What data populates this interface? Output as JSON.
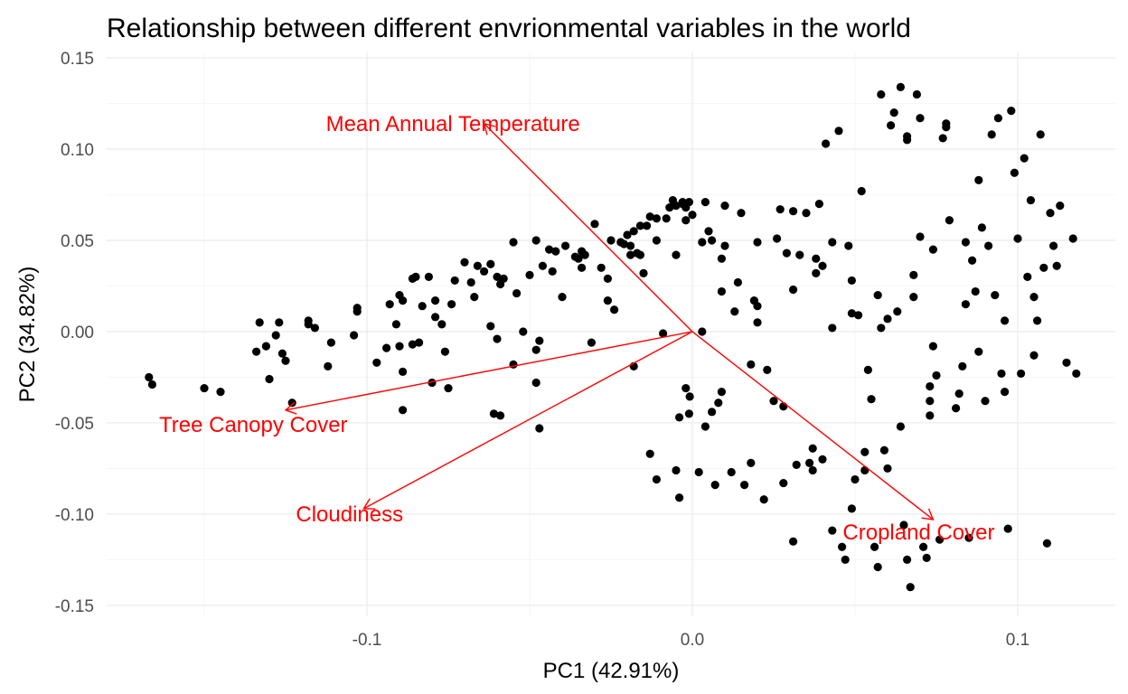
{
  "chart_data": {
    "type": "scatter",
    "title": "Relationship between different envrionmental variables in the world",
    "xlabel": "PC1 (42.91%)",
    "ylabel": "PC2 (34.82%)",
    "xlim": [
      -0.18,
      0.13
    ],
    "ylim": [
      -0.156,
      0.153
    ],
    "x_ticks": [
      -0.1,
      0.0,
      0.1
    ],
    "x_tick_labels": [
      "-0.1",
      "0.0",
      "0.1"
    ],
    "y_ticks": [
      -0.15,
      -0.1,
      -0.05,
      0.0,
      0.05,
      0.1,
      0.15
    ],
    "y_tick_labels": [
      "-0.15",
      "-0.10",
      "-0.05",
      "0.00",
      "0.05",
      "0.10",
      "0.15"
    ],
    "grid": true,
    "point_color": "#000000",
    "arrow_color": "#ff0000",
    "arrows": [
      {
        "label": "Mean Annual Temperature",
        "x": -0.064,
        "y": 0.114
      },
      {
        "label": "Tree Canopy Cover",
        "x": -0.125,
        "y": -0.043
      },
      {
        "label": "Cloudiness",
        "x": -0.101,
        "y": -0.097
      },
      {
        "label": "Cropland Cover",
        "x": 0.074,
        "y": -0.103
      }
    ],
    "points": [
      [
        -0.167,
        -0.025
      ],
      [
        -0.166,
        -0.029
      ],
      [
        -0.15,
        -0.031
      ],
      [
        -0.145,
        -0.033
      ],
      [
        -0.134,
        -0.011
      ],
      [
        -0.133,
        0.005
      ],
      [
        -0.131,
        -0.008
      ],
      [
        -0.13,
        -0.026
      ],
      [
        -0.128,
        -0.002
      ],
      [
        -0.127,
        0.005
      ],
      [
        -0.126,
        -0.012
      ],
      [
        -0.125,
        -0.016
      ],
      [
        -0.123,
        -0.039
      ],
      [
        -0.118,
        0.006
      ],
      [
        -0.118,
        0.004
      ],
      [
        -0.116,
        0.002
      ],
      [
        -0.112,
        -0.019
      ],
      [
        -0.111,
        -0.006
      ],
      [
        -0.104,
        -0.002
      ],
      [
        -0.103,
        0.011
      ],
      [
        -0.103,
        0.013
      ],
      [
        -0.097,
        -0.017
      ],
      [
        -0.094,
        -0.009
      ],
      [
        -0.093,
        0.015
      ],
      [
        -0.091,
        0.004
      ],
      [
        -0.09,
        -0.008
      ],
      [
        -0.09,
        0.02
      ],
      [
        -0.089,
        0.017
      ],
      [
        -0.089,
        -0.022
      ],
      [
        -0.089,
        -0.043
      ],
      [
        -0.086,
        -0.007
      ],
      [
        -0.086,
        0.029
      ],
      [
        -0.085,
        0.03
      ],
      [
        -0.084,
        -0.006
      ],
      [
        -0.083,
        0.014
      ],
      [
        -0.081,
        0.03
      ],
      [
        -0.08,
        -0.028
      ],
      [
        -0.079,
        0.017
      ],
      [
        -0.079,
        0.008
      ],
      [
        -0.077,
        0.004
      ],
      [
        -0.076,
        -0.011
      ],
      [
        -0.075,
        -0.031
      ],
      [
        -0.074,
        0.015
      ],
      [
        -0.073,
        0.028
      ],
      [
        -0.07,
        0.038
      ],
      [
        -0.068,
        0.027
      ],
      [
        -0.067,
        0.019
      ],
      [
        -0.066,
        0.036
      ],
      [
        -0.064,
        0.033
      ],
      [
        -0.062,
        0.037
      ],
      [
        -0.062,
        0.003
      ],
      [
        -0.061,
        -0.045
      ],
      [
        -0.06,
        -0.004
      ],
      [
        -0.06,
        0.03
      ],
      [
        -0.059,
        0.026
      ],
      [
        -0.059,
        -0.046
      ],
      [
        -0.058,
        0.029
      ],
      [
        -0.055,
        -0.018
      ],
      [
        -0.055,
        0.049
      ],
      [
        -0.054,
        0.021
      ],
      [
        -0.052,
        0.0
      ],
      [
        -0.05,
        0.031
      ],
      [
        -0.048,
        0.05
      ],
      [
        -0.048,
        -0.028
      ],
      [
        -0.048,
        -0.01
      ],
      [
        -0.047,
        -0.053
      ],
      [
        -0.047,
        -0.005
      ],
      [
        -0.046,
        0.036
      ],
      [
        -0.044,
        0.045
      ],
      [
        -0.043,
        0.033
      ],
      [
        -0.042,
        0.044
      ],
      [
        -0.04,
        0.019
      ],
      [
        -0.039,
        0.047
      ],
      [
        -0.036,
        0.041
      ],
      [
        -0.035,
        0.04
      ],
      [
        -0.034,
        0.044
      ],
      [
        -0.034,
        0.035
      ],
      [
        -0.033,
        0.042
      ],
      [
        -0.031,
        -0.006
      ],
      [
        -0.03,
        0.059
      ],
      [
        -0.028,
        0.035
      ],
      [
        -0.026,
        0.017
      ],
      [
        -0.026,
        0.029
      ],
      [
        -0.025,
        0.05
      ],
      [
        -0.024,
        0.012
      ],
      [
        -0.022,
        0.049
      ],
      [
        -0.021,
        0.048
      ],
      [
        -0.02,
        0.053
      ],
      [
        -0.019,
        0.042
      ],
      [
        -0.019,
        0.047
      ],
      [
        -0.018,
        0.055
      ],
      [
        -0.018,
        -0.019
      ],
      [
        -0.017,
        0.043
      ],
      [
        -0.016,
        0.042
      ],
      [
        -0.016,
        0.058
      ],
      [
        -0.015,
        0.032
      ],
      [
        -0.014,
        0.058
      ],
      [
        -0.013,
        0.063
      ],
      [
        -0.013,
        -0.067
      ],
      [
        -0.011,
        0.062
      ],
      [
        -0.011,
        0.05
      ],
      [
        -0.011,
        -0.081
      ],
      [
        -0.009,
        -0.001
      ],
      [
        -0.008,
        0.062
      ],
      [
        -0.007,
        0.068
      ],
      [
        -0.006,
        0.072
      ],
      [
        -0.005,
        0.069
      ],
      [
        -0.005,
        0.042
      ],
      [
        -0.005,
        -0.076
      ],
      [
        -0.004,
        -0.047
      ],
      [
        -0.004,
        -0.091
      ],
      [
        -0.003,
        0.07
      ],
      [
        -0.003,
        0.071
      ],
      [
        -0.003,
        0.07
      ],
      [
        -0.002,
        0.061
      ],
      [
        -0.002,
        0.068
      ],
      [
        -0.0008,
        -0.0356
      ],
      [
        0.0,
        0.064
      ],
      [
        -0.001,
        0.071
      ],
      [
        -0.002,
        -0.031
      ],
      [
        -0.001,
        -0.045
      ],
      [
        0.002,
        -0.077
      ],
      [
        0.003,
        0.049
      ],
      [
        0.003,
        0.0
      ],
      [
        0.004,
        -0.052
      ],
      [
        0.004,
        0.071
      ],
      [
        0.005,
        0.055
      ],
      [
        0.006,
        0.05
      ],
      [
        0.006,
        -0.044
      ],
      [
        0.007,
        -0.084
      ],
      [
        0.008,
        -0.039
      ],
      [
        0.009,
        0.022
      ],
      [
        0.009,
        0.04
      ],
      [
        0.009,
        -0.033
      ],
      [
        0.01,
        0.069
      ],
      [
        0.01,
        0.047
      ],
      [
        0.012,
        -0.077
      ],
      [
        0.013,
        0.011
      ],
      [
        0.014,
        0.027
      ],
      [
        0.015,
        0.065
      ],
      [
        0.016,
        -0.084
      ],
      [
        0.018,
        -0.072
      ],
      [
        0.018,
        -0.018
      ],
      [
        0.019,
        0.017
      ],
      [
        0.02,
        0.014
      ],
      [
        0.02,
        0.005
      ],
      [
        0.02,
        0.049
      ],
      [
        0.022,
        -0.092
      ],
      [
        0.023,
        -0.021
      ],
      [
        0.025,
        -0.038
      ],
      [
        0.026,
        0.051
      ],
      [
        0.027,
        0.067
      ],
      [
        0.028,
        -0.083
      ],
      [
        0.028,
        -0.041
      ],
      [
        0.029,
        0.043
      ],
      [
        0.031,
        0.066
      ],
      [
        0.031,
        0.023
      ],
      [
        0.031,
        -0.115
      ],
      [
        0.032,
        -0.073
      ],
      [
        0.033,
        0.042
      ],
      [
        0.035,
        0.065
      ],
      [
        0.036,
        -0.072
      ],
      [
        0.037,
        -0.064
      ],
      [
        0.037,
        -0.076
      ],
      [
        0.038,
        0.032
      ],
      [
        0.038,
        0.04
      ],
      [
        0.039,
        0.07
      ],
      [
        0.04,
        -0.07
      ],
      [
        0.04,
        0.036
      ],
      [
        0.041,
        0.103
      ],
      [
        0.043,
        0.002
      ],
      [
        0.043,
        -0.109
      ],
      [
        0.043,
        0.049
      ],
      [
        0.045,
        0.11
      ],
      [
        0.046,
        -0.118
      ],
      [
        0.047,
        -0.125
      ],
      [
        0.048,
        0.047
      ],
      [
        0.049,
        0.028
      ],
      [
        0.049,
        0.01
      ],
      [
        0.049,
        -0.097
      ],
      [
        0.05,
        -0.081
      ],
      [
        0.051,
        0.009
      ],
      [
        0.052,
        0.077
      ],
      [
        0.053,
        -0.066
      ],
      [
        0.053,
        -0.076
      ],
      [
        0.054,
        -0.021
      ],
      [
        0.055,
        -0.037
      ],
      [
        0.056,
        -0.118
      ],
      [
        0.057,
        0.02
      ],
      [
        0.057,
        -0.129
      ],
      [
        0.058,
        0.002
      ],
      [
        0.058,
        0.13
      ],
      [
        0.059,
        -0.065
      ],
      [
        0.06,
        0.007
      ],
      [
        0.06,
        -0.075
      ],
      [
        0.061,
        0.113
      ],
      [
        0.062,
        0.12
      ],
      [
        0.063,
        0.011
      ],
      [
        0.064,
        -0.052
      ],
      [
        0.064,
        0.134
      ],
      [
        0.065,
        -0.106
      ],
      [
        0.066,
        0.107
      ],
      [
        0.066,
        -0.125
      ],
      [
        0.066,
        0.105
      ],
      [
        0.067,
        -0.14
      ],
      [
        0.068,
        0.031
      ],
      [
        0.068,
        0.019
      ],
      [
        0.069,
        0.13
      ],
      [
        0.07,
        0.117
      ],
      [
        0.07,
        0.052
      ],
      [
        0.071,
        -0.118
      ],
      [
        0.072,
        -0.124
      ],
      [
        0.073,
        -0.046
      ],
      [
        0.073,
        -0.038
      ],
      [
        0.073,
        -0.03
      ],
      [
        0.074,
        -0.008
      ],
      [
        0.074,
        0.045
      ],
      [
        0.075,
        -0.024
      ],
      [
        0.076,
        -0.114
      ],
      [
        0.077,
        0.106
      ],
      [
        0.078,
        0.114
      ],
      [
        0.078,
        0.112
      ],
      [
        0.079,
        0.061
      ],
      [
        0.081,
        -0.042
      ],
      [
        0.082,
        -0.034
      ],
      [
        0.083,
        -0.019
      ],
      [
        0.084,
        0.049
      ],
      [
        0.084,
        0.015
      ],
      [
        0.085,
        -0.113
      ],
      [
        0.086,
        0.039
      ],
      [
        0.087,
        0.022
      ],
      [
        0.088,
        -0.011
      ],
      [
        0.088,
        0.083
      ],
      [
        0.089,
        0.057
      ],
      [
        0.09,
        -0.038
      ],
      [
        0.091,
        0.047
      ],
      [
        0.092,
        0.108
      ],
      [
        0.093,
        0.02
      ],
      [
        0.094,
        0.117
      ],
      [
        0.095,
        -0.023
      ],
      [
        0.096,
        0.006
      ],
      [
        0.096,
        -0.033
      ],
      [
        0.097,
        -0.108
      ],
      [
        0.098,
        0.121
      ],
      [
        0.099,
        0.087
      ],
      [
        0.1,
        0.051
      ],
      [
        0.101,
        -0.023
      ],
      [
        0.102,
        0.095
      ],
      [
        0.103,
        0.03
      ],
      [
        0.104,
        0.072
      ],
      [
        0.105,
        -0.013
      ],
      [
        0.105,
        0.019
      ],
      [
        0.106,
        0.006
      ],
      [
        0.107,
        0.108
      ],
      [
        0.108,
        0.035
      ],
      [
        0.109,
        -0.116
      ],
      [
        0.11,
        0.065
      ],
      [
        0.111,
        0.047
      ],
      [
        0.112,
        0.036
      ],
      [
        0.113,
        0.069
      ],
      [
        0.115,
        -0.017
      ],
      [
        0.117,
        0.051
      ],
      [
        0.118,
        -0.023
      ]
    ]
  }
}
